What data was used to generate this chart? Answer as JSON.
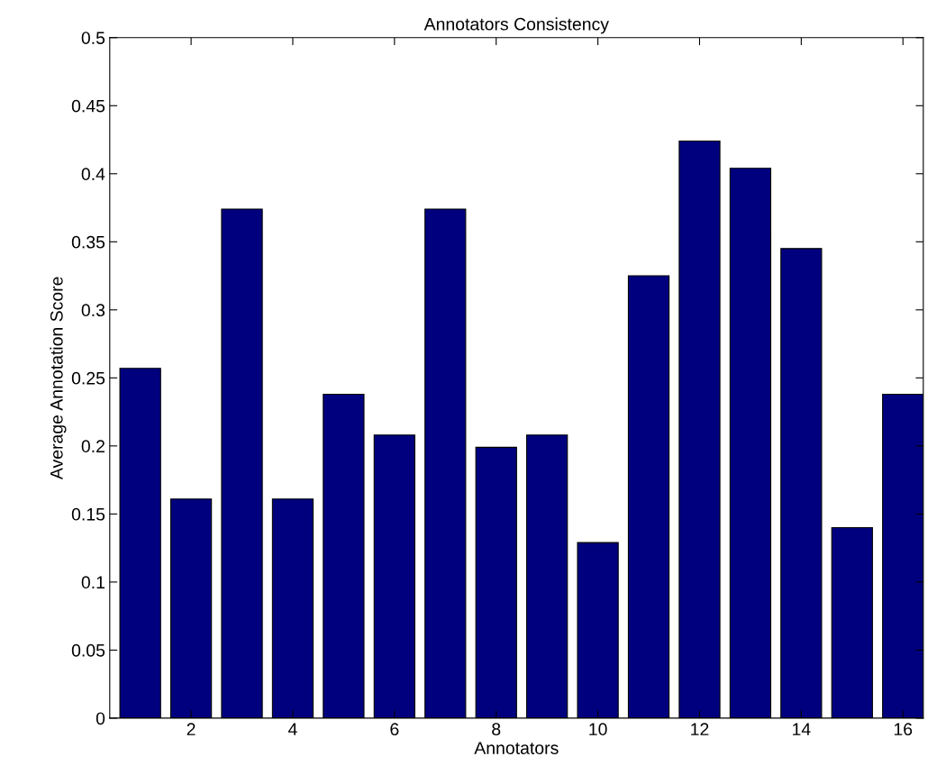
{
  "chart_data": {
    "type": "bar",
    "title": "Annotators Consistency",
    "xlabel": "Annotators",
    "ylabel": "Average Annotation Score",
    "x": [
      1,
      2,
      3,
      4,
      5,
      6,
      7,
      8,
      9,
      10,
      11,
      12,
      13,
      14,
      15,
      16
    ],
    "values": [
      0.257,
      0.161,
      0.374,
      0.161,
      0.238,
      0.208,
      0.374,
      0.199,
      0.208,
      0.129,
      0.325,
      0.424,
      0.404,
      0.345,
      0.14,
      0.238
    ],
    "color": "#00007f",
    "xlim": [
      0.4,
      16.4
    ],
    "xticks": [
      2,
      4,
      6,
      8,
      10,
      12,
      14,
      16
    ],
    "ylim": [
      0,
      0.5
    ],
    "yticks": [
      0,
      0.05,
      0.1,
      0.15,
      0.2,
      0.25,
      0.3,
      0.35,
      0.4,
      0.45,
      0.5
    ],
    "grid": false,
    "legend": false
  }
}
